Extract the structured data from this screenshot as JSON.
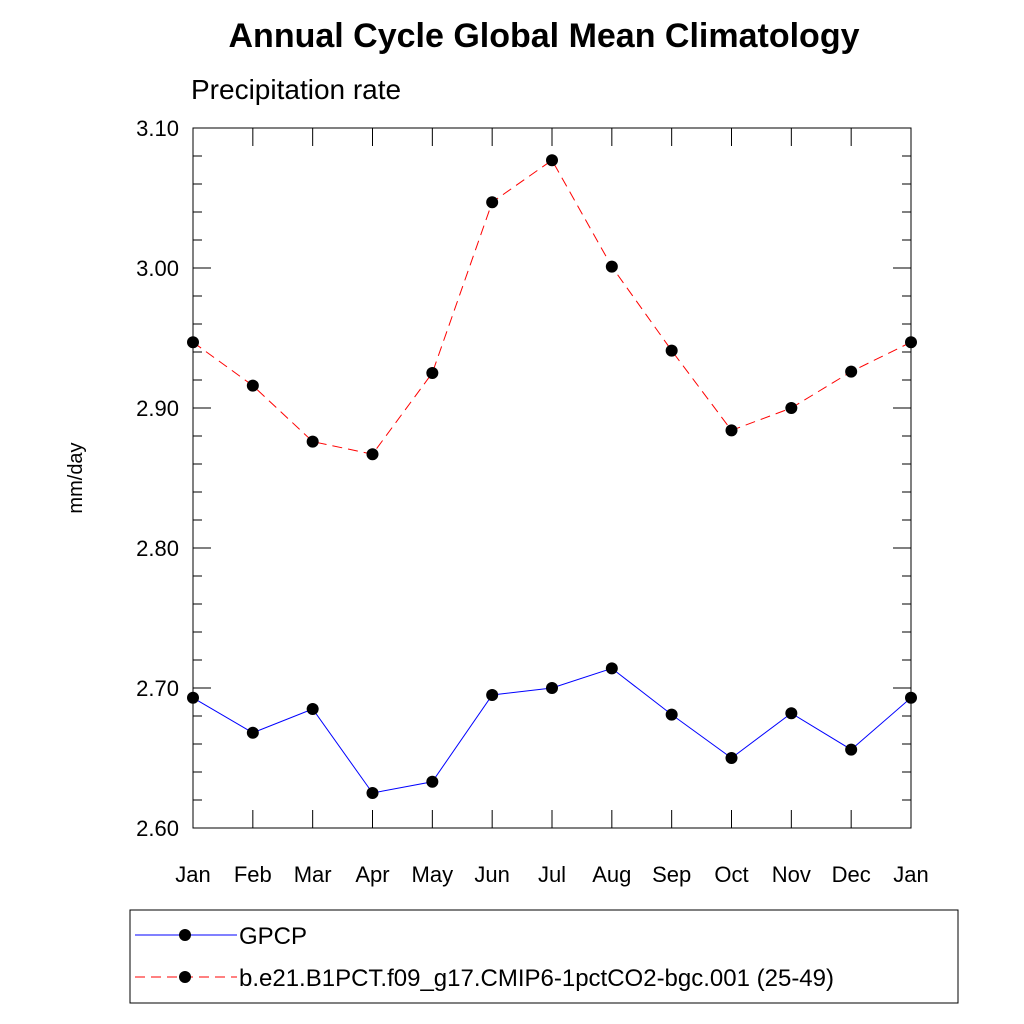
{
  "chart_data": {
    "type": "line",
    "title": "Annual Cycle Global Mean Climatology",
    "subtitle": "Precipitation rate",
    "xlabel": "",
    "ylabel": "mm/day",
    "ylim": [
      2.6,
      3.1
    ],
    "yticks": [
      "2.60",
      "2.70",
      "2.80",
      "2.90",
      "3.00",
      "3.10"
    ],
    "categories": [
      "Jan",
      "Feb",
      "Mar",
      "Apr",
      "May",
      "Jun",
      "Jul",
      "Aug",
      "Sep",
      "Oct",
      "Nov",
      "Dec",
      "Jan"
    ],
    "series": [
      {
        "name": "GPCP",
        "color": "#0000ff",
        "dash": "solid",
        "values": [
          2.693,
          2.668,
          2.685,
          2.625,
          2.633,
          2.695,
          2.7,
          2.714,
          2.681,
          2.65,
          2.682,
          2.656,
          2.693
        ]
      },
      {
        "name": "b.e21.B1PCT.f09_g17.CMIP6-1pctCO2-bgc.001 (25-49)",
        "color": "#ff0000",
        "dash": "dashed",
        "values": [
          2.947,
          2.916,
          2.876,
          2.867,
          2.925,
          3.047,
          3.077,
          3.001,
          2.941,
          2.884,
          2.9,
          2.926,
          2.947
        ]
      }
    ],
    "legend_position": "bottom"
  }
}
